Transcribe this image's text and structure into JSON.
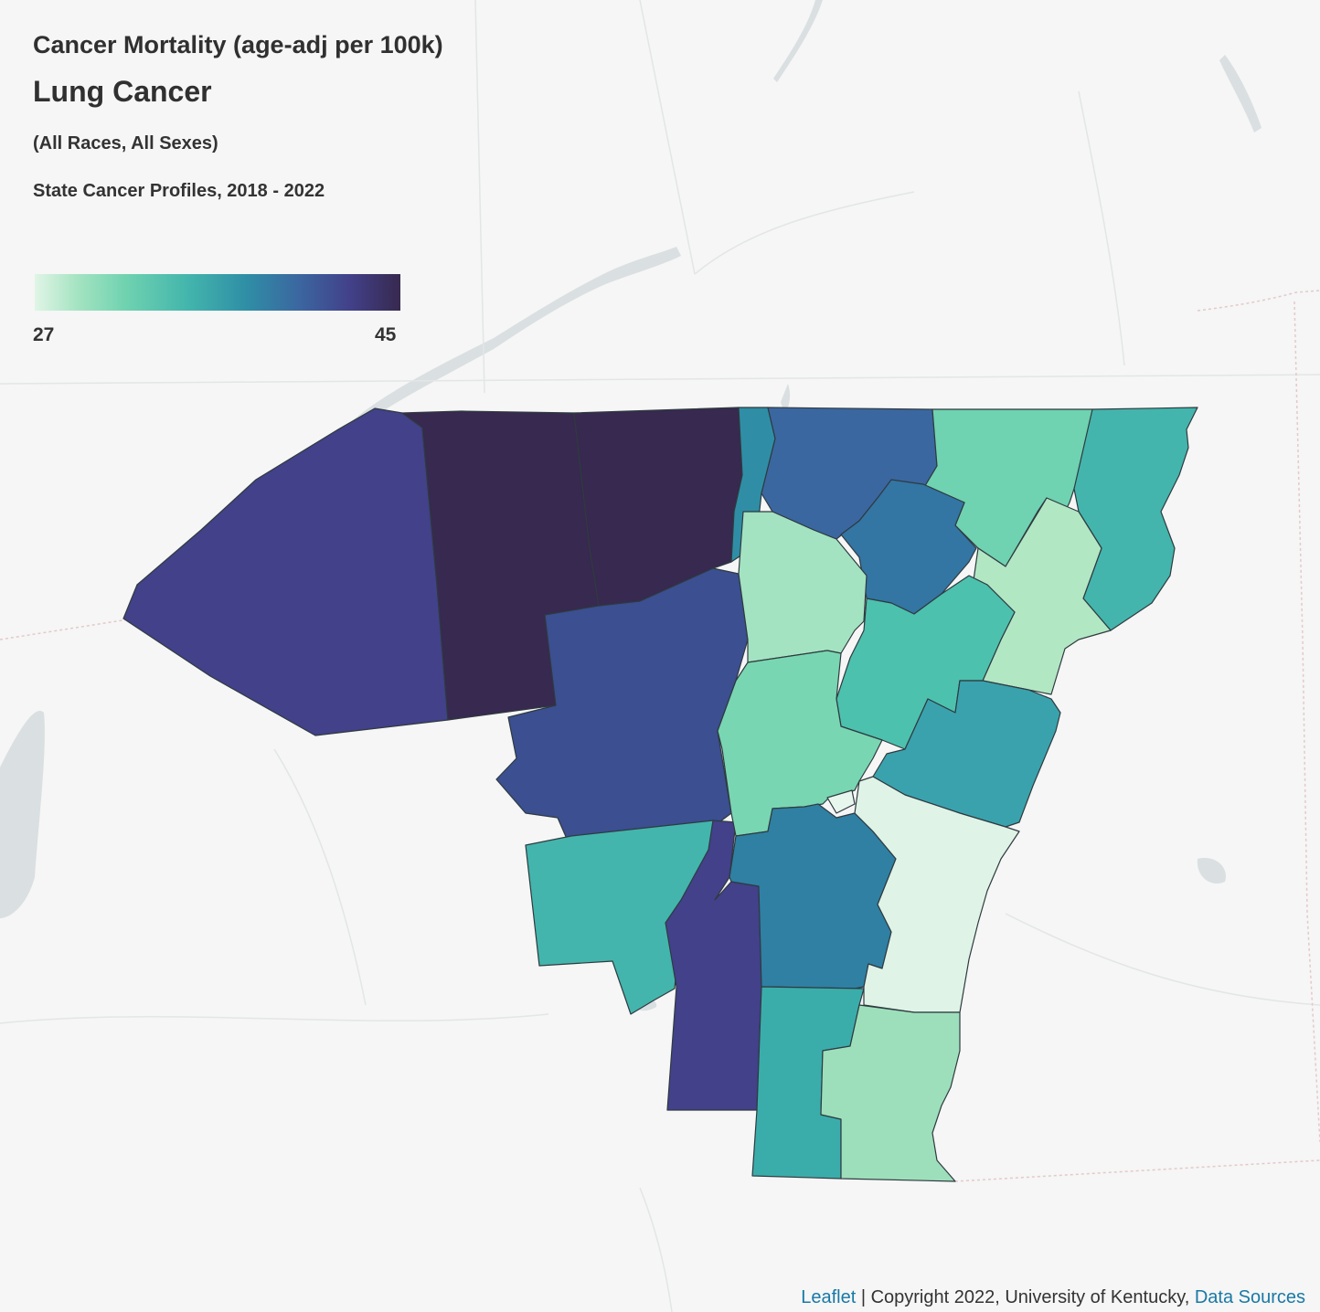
{
  "map": {
    "title": "Cancer Mortality (age-adj per 100k)",
    "subtitle": "Lung Cancer",
    "group": "(All Races, All Sexes)",
    "source": "State Cancer Profiles, 2018 - 2022",
    "scale_min": "27",
    "scale_max": "45",
    "colors": [
      "#e0f5e6",
      "#a3e3c1",
      "#6fd2b0",
      "#43b5ac",
      "#2f8ea6",
      "#3b67a0",
      "#42418a",
      "#37294f"
    ]
  },
  "attribution": {
    "leaflet_link": "Leaflet",
    "separator": " | ",
    "copyright": "Copyright 2022, University of Kentucky, ",
    "data_sources_link": "Data Sources"
  }
}
